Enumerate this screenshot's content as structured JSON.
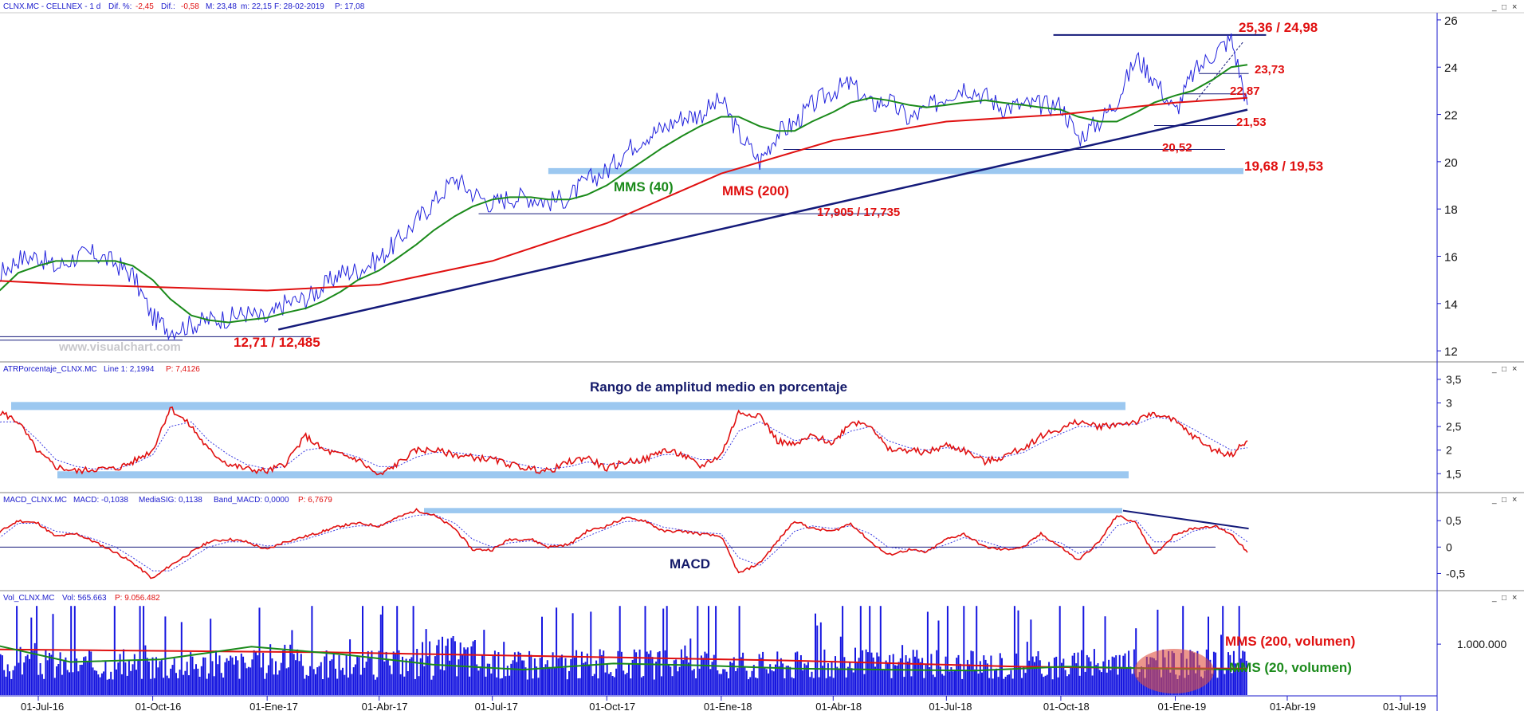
{
  "colors": {
    "price": "#2222dd",
    "mms40": "#1a8a1a",
    "mms200": "#e01010",
    "trend": "#141a7a",
    "band": "#9cc8f0",
    "axis": "#1a1acc",
    "label_red": "#e01010",
    "label_green": "#1a8a1a",
    "label_navy": "#141a6a"
  },
  "panels": {
    "price": {
      "header": [
        "CLNX.MC - CELLNEX - 1 d",
        "Dif. %:",
        "-2,45",
        "Dif.:",
        "-0,58",
        "M: 23,48",
        "m: 22,15",
        "F: 28-02-2019",
        "P: 17,08"
      ],
      "yticks": [
        "12",
        "14",
        "16",
        "18",
        "20",
        "22",
        "24",
        "26"
      ],
      "watermark": "www.visualchart.com",
      "labels": {
        "mms40": "MMS (40)",
        "mms200": "MMS (200)",
        "lvl_high": "25,36 / 24,98",
        "lvl_2373": "23,73",
        "lvl_2287": "22,87",
        "lvl_2153": "21,53",
        "lvl_2052": "20,52",
        "lvl_support": "19,68 / 19,53",
        "lvl_1790": "17,905 / 17,735",
        "lvl_low": "12,71 / 12,485"
      }
    },
    "atr": {
      "header": [
        "ATRPorcentaje_CLNX.MC",
        "Line 1: 2,1994",
        "P: 7,4126"
      ],
      "title": "Rango de amplitud medio en porcentaje",
      "yticks": [
        "1,5",
        "2",
        "2,5",
        "3",
        "3,5"
      ]
    },
    "macd": {
      "header": [
        "MACD_CLNX.MC",
        "MACD: -0,1038",
        "MediaSIG: 0,1138",
        "Band_MACD: 0,0000",
        "P: 6,7679"
      ],
      "title": "MACD",
      "yticks": [
        "-0,5",
        "0",
        "0,5"
      ]
    },
    "vol": {
      "header": [
        "Vol_CLNX.MC",
        "Vol: 565.663",
        "P: 9.056.482"
      ],
      "ytick": "1.000.000",
      "labels": {
        "mms200": "MMS (200, volumen)",
        "mms20": "MMS (20, volumen)"
      }
    }
  },
  "xaxis": [
    "01-Jul-16",
    "01-Oct-16",
    "01-Ene-17",
    "01-Abr-17",
    "01-Jul-17",
    "01-Oct-17",
    "01-Ene-18",
    "01-Abr-18",
    "01-Jul-18",
    "01-Oct-18",
    "01-Ene-19",
    "01-Abr-19",
    "01-Jul-19"
  ],
  "window_controls": [
    "_",
    "□",
    "×"
  ],
  "chart_data": [
    {
      "type": "line",
      "panel": "price",
      "x_dates": [
        "2016-05-15",
        "2016-06-01",
        "2016-06-15",
        "2016-07-01",
        "2016-07-15",
        "2016-08-01",
        "2016-08-15",
        "2016-09-01",
        "2016-09-15",
        "2016-10-01",
        "2016-10-15",
        "2016-11-01",
        "2016-11-15",
        "2016-12-01",
        "2016-12-15",
        "2017-01-01",
        "2017-01-15",
        "2017-02-01",
        "2017-02-15",
        "2017-03-01",
        "2017-03-15",
        "2017-04-01",
        "2017-04-15",
        "2017-05-01",
        "2017-05-15",
        "2017-06-01",
        "2017-06-15",
        "2017-07-01",
        "2017-07-15",
        "2017-08-01",
        "2017-08-15",
        "2017-09-01",
        "2017-09-15",
        "2017-10-01",
        "2017-10-15",
        "2017-11-01",
        "2017-11-15",
        "2017-12-01",
        "2017-12-15",
        "2018-01-01",
        "2018-01-15",
        "2018-02-01",
        "2018-02-15",
        "2018-03-01",
        "2018-03-15",
        "2018-04-01",
        "2018-04-15",
        "2018-05-01",
        "2018-05-15",
        "2018-06-01",
        "2018-06-15",
        "2018-07-01",
        "2018-07-15",
        "2018-08-01",
        "2018-08-15",
        "2018-09-01",
        "2018-09-15",
        "2018-10-01",
        "2018-10-15",
        "2018-11-01",
        "2018-11-15",
        "2018-12-01",
        "2018-12-15",
        "2019-01-01",
        "2019-01-15",
        "2019-02-01",
        "2019-02-15",
        "2019-02-28"
      ],
      "ylim": [
        11.6,
        26.2
      ],
      "series": [
        {
          "key": "price",
          "values": [
            13.6,
            15.3,
            15.9,
            16.0,
            15.5,
            16.0,
            16.1,
            15.7,
            15.2,
            13.4,
            12.9,
            13.1,
            13.3,
            13.4,
            13.6,
            13.3,
            14.0,
            14.2,
            14.7,
            15.3,
            15.4,
            15.9,
            16.6,
            17.5,
            18.3,
            19.3,
            18.7,
            18.2,
            18.5,
            18.5,
            18.3,
            18.5,
            19.2,
            19.6,
            20.4,
            21.1,
            21.4,
            21.9,
            22.0,
            22.6,
            21.2,
            20.0,
            21.2,
            21.6,
            22.4,
            23.0,
            23.3,
            22.4,
            22.6,
            21.8,
            22.2,
            22.8,
            23.2,
            22.8,
            22.3,
            22.4,
            22.4,
            22.4,
            21.0,
            21.7,
            22.6,
            24.4,
            23.5,
            22.1,
            23.7,
            24.6,
            25.2,
            22.4
          ]
        },
        {
          "key": "mms40",
          "values": [
            13.8,
            14.6,
            15.3,
            15.6,
            15.8,
            15.8,
            15.8,
            15.8,
            15.6,
            15.0,
            14.2,
            13.5,
            13.3,
            13.2,
            13.3,
            13.4,
            13.6,
            13.8,
            14.1,
            14.5,
            15.0,
            15.4,
            15.9,
            16.5,
            17.1,
            17.7,
            18.1,
            18.4,
            18.5,
            18.5,
            18.4,
            18.4,
            18.6,
            19.0,
            19.5,
            20.1,
            20.6,
            21.1,
            21.5,
            21.9,
            21.9,
            21.5,
            21.3,
            21.3,
            21.7,
            22.1,
            22.5,
            22.7,
            22.6,
            22.4,
            22.3,
            22.4,
            22.5,
            22.6,
            22.5,
            22.4,
            22.3,
            22.2,
            21.9,
            21.7,
            21.7,
            22.1,
            22.5,
            22.8,
            23.0,
            23.5,
            24.0,
            24.1
          ]
        }
      ]
    },
    {
      "type": "line",
      "panel": "price",
      "x_dates": [
        "2016-05-15",
        "2016-08-01",
        "2016-11-01",
        "2017-01-01",
        "2017-04-01",
        "2017-07-01",
        "2017-10-01",
        "2018-01-01",
        "2018-04-01",
        "2018-07-01",
        "2018-10-01",
        "2019-01-01",
        "2019-02-28"
      ],
      "series": [
        {
          "key": "mms200",
          "values": [
            15.0,
            14.8,
            14.65,
            14.55,
            14.8,
            15.8,
            17.4,
            19.5,
            20.9,
            21.7,
            22.0,
            22.5,
            22.7
          ]
        }
      ]
    },
    {
      "type": "line",
      "panel": "atr",
      "x_dates": [
        "2016-05-15",
        "2016-06-01",
        "2016-06-15",
        "2016-07-01",
        "2016-07-15",
        "2016-08-01",
        "2016-08-15",
        "2016-09-01",
        "2016-09-15",
        "2016-10-01",
        "2016-10-15",
        "2016-11-01",
        "2016-11-15",
        "2016-12-01",
        "2016-12-15",
        "2017-01-01",
        "2017-01-15",
        "2017-02-01",
        "2017-02-15",
        "2017-03-01",
        "2017-03-15",
        "2017-04-01",
        "2017-04-15",
        "2017-05-01",
        "2017-05-15",
        "2017-06-01",
        "2017-06-15",
        "2017-07-01",
        "2017-07-15",
        "2017-08-01",
        "2017-08-15",
        "2017-09-01",
        "2017-09-15",
        "2017-10-01",
        "2017-10-15",
        "2017-11-01",
        "2017-11-15",
        "2017-12-01",
        "2017-12-15",
        "2018-01-01",
        "2018-01-15",
        "2018-02-01",
        "2018-02-15",
        "2018-03-01",
        "2018-03-15",
        "2018-04-01",
        "2018-04-15",
        "2018-05-01",
        "2018-05-15",
        "2018-06-01",
        "2018-06-15",
        "2018-07-01",
        "2018-07-15",
        "2018-08-01",
        "2018-08-15",
        "2018-09-01",
        "2018-09-15",
        "2018-10-01",
        "2018-10-15",
        "2018-11-01",
        "2018-11-15",
        "2018-12-01",
        "2018-12-15",
        "2019-01-01",
        "2019-01-15",
        "2019-02-01",
        "2019-02-15",
        "2019-02-28"
      ],
      "ylim": [
        1.2,
        3.6
      ],
      "series": [
        {
          "key": "atr",
          "values": [
            2.2,
            2.8,
            2.6,
            1.95,
            1.65,
            1.55,
            1.6,
            1.6,
            1.75,
            2.0,
            2.9,
            2.5,
            2.0,
            1.7,
            1.6,
            1.55,
            1.7,
            2.3,
            2.0,
            1.9,
            1.8,
            1.45,
            1.7,
            2.0,
            2.0,
            1.9,
            1.85,
            1.8,
            1.7,
            1.6,
            1.55,
            1.75,
            1.85,
            1.6,
            1.75,
            1.8,
            2.0,
            1.9,
            1.65,
            1.9,
            2.8,
            2.75,
            2.2,
            2.1,
            2.3,
            2.15,
            2.6,
            2.55,
            2.0,
            2.0,
            1.95,
            2.1,
            2.0,
            1.75,
            1.85,
            2.05,
            2.3,
            2.45,
            2.6,
            2.5,
            2.55,
            2.6,
            2.8,
            2.6,
            2.3,
            2.0,
            1.9,
            2.2
          ]
        },
        {
          "key": "atr_signal",
          "values": [
            2.4,
            2.6,
            2.6,
            2.2,
            1.8,
            1.65,
            1.6,
            1.6,
            1.7,
            1.9,
            2.5,
            2.6,
            2.2,
            1.9,
            1.7,
            1.6,
            1.65,
            2.0,
            2.05,
            1.95,
            1.85,
            1.65,
            1.65,
            1.85,
            1.95,
            1.95,
            1.9,
            1.85,
            1.75,
            1.65,
            1.6,
            1.65,
            1.75,
            1.7,
            1.72,
            1.78,
            1.9,
            1.92,
            1.8,
            1.8,
            2.4,
            2.6,
            2.4,
            2.2,
            2.25,
            2.2,
            2.4,
            2.5,
            2.2,
            2.05,
            2.0,
            2.05,
            2.02,
            1.85,
            1.85,
            1.95,
            2.15,
            2.35,
            2.5,
            2.5,
            2.55,
            2.55,
            2.7,
            2.65,
            2.45,
            2.2,
            2.0,
            2.05
          ]
        }
      ]
    },
    {
      "type": "line",
      "panel": "macd",
      "x_dates": [
        "2016-05-15",
        "2016-06-01",
        "2016-06-15",
        "2016-07-01",
        "2016-07-15",
        "2016-08-01",
        "2016-08-15",
        "2016-09-01",
        "2016-09-15",
        "2016-10-01",
        "2016-10-15",
        "2016-11-01",
        "2016-11-15",
        "2016-12-01",
        "2016-12-15",
        "2017-01-01",
        "2017-01-15",
        "2017-02-01",
        "2017-02-15",
        "2017-03-01",
        "2017-03-15",
        "2017-04-01",
        "2017-04-15",
        "2017-05-01",
        "2017-05-15",
        "2017-06-01",
        "2017-06-15",
        "2017-07-01",
        "2017-07-15",
        "2017-08-01",
        "2017-08-15",
        "2017-09-01",
        "2017-09-15",
        "2017-10-01",
        "2017-10-15",
        "2017-11-01",
        "2017-11-15",
        "2017-12-01",
        "2017-12-15",
        "2018-01-01",
        "2018-01-15",
        "2018-02-01",
        "2018-02-15",
        "2018-03-01",
        "2018-03-15",
        "2018-04-01",
        "2018-04-15",
        "2018-05-01",
        "2018-05-15",
        "2018-06-01",
        "2018-06-15",
        "2018-07-01",
        "2018-07-15",
        "2018-08-01",
        "2018-08-15",
        "2018-09-01",
        "2018-09-15",
        "2018-10-01",
        "2018-10-15",
        "2018-11-01",
        "2018-11-15",
        "2018-12-01",
        "2018-12-15",
        "2019-01-01",
        "2019-01-15",
        "2019-02-01",
        "2019-02-15",
        "2019-02-28"
      ],
      "ylim": [
        -0.78,
        0.82
      ],
      "series": [
        {
          "key": "macd",
          "values": [
            -0.1,
            0.3,
            0.5,
            0.45,
            0.2,
            0.25,
            0.1,
            -0.1,
            -0.3,
            -0.6,
            -0.35,
            -0.1,
            0.1,
            0.15,
            0.1,
            -0.05,
            0.1,
            0.2,
            0.3,
            0.4,
            0.45,
            0.4,
            0.55,
            0.7,
            0.6,
            0.35,
            -0.05,
            -0.05,
            0.15,
            0.15,
            0.0,
            0.05,
            0.3,
            0.4,
            0.55,
            0.5,
            0.3,
            0.3,
            0.25,
            0.2,
            -0.5,
            -0.3,
            0.1,
            0.5,
            0.35,
            0.3,
            0.45,
            0.1,
            -0.15,
            -0.05,
            -0.1,
            0.15,
            0.25,
            0.0,
            -0.05,
            0.0,
            0.25,
            0.0,
            -0.25,
            0.1,
            0.6,
            0.45,
            -0.15,
            0.25,
            0.35,
            0.4,
            0.25,
            -0.1
          ]
        },
        {
          "key": "macd_signal",
          "values": [
            -0.05,
            0.2,
            0.45,
            0.45,
            0.3,
            0.25,
            0.15,
            0.0,
            -0.2,
            -0.45,
            -0.45,
            -0.2,
            0.0,
            0.1,
            0.1,
            0.02,
            0.05,
            0.15,
            0.25,
            0.35,
            0.4,
            0.4,
            0.5,
            0.6,
            0.62,
            0.45,
            0.15,
            0.0,
            0.08,
            0.12,
            0.05,
            0.03,
            0.2,
            0.35,
            0.48,
            0.5,
            0.38,
            0.32,
            0.28,
            0.25,
            -0.2,
            -0.35,
            -0.05,
            0.3,
            0.4,
            0.35,
            0.4,
            0.25,
            0.0,
            -0.05,
            -0.08,
            0.05,
            0.18,
            0.1,
            0.0,
            -0.02,
            0.15,
            0.08,
            -0.12,
            0.0,
            0.4,
            0.5,
            0.1,
            0.1,
            0.3,
            0.38,
            0.32,
            0.1
          ]
        }
      ]
    },
    {
      "type": "bar",
      "panel": "vol",
      "bars": 700,
      "ylim": [
        0,
        1800000
      ],
      "series": [
        {
          "key": "vol_mms200",
          "values": [
            900000,
            880000,
            860000,
            840000,
            800000,
            760000,
            720000,
            680000,
            620000,
            560000,
            530000,
            520000
          ]
        },
        {
          "key": "vol_mms20",
          "values": [
            1050000,
            650000,
            700000,
            950000,
            800000,
            600000,
            500000,
            620000,
            580000,
            520000,
            500000,
            480000,
            560000,
            520000,
            500000
          ]
        }
      ]
    }
  ]
}
